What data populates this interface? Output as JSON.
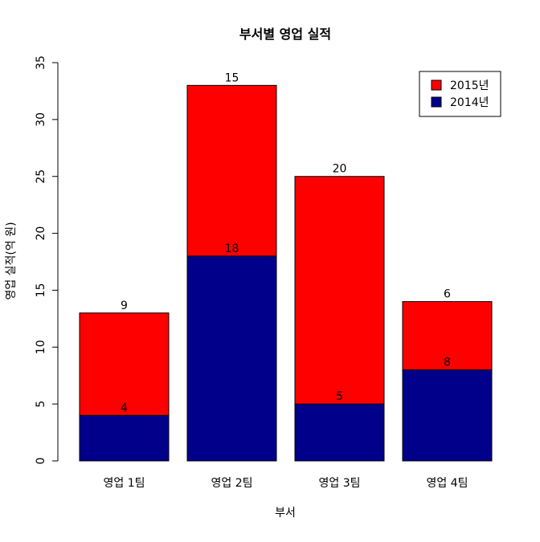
{
  "chart_data": {
    "type": "bar",
    "stacked": true,
    "title": "부서별 영업 실적",
    "xlabel": "부서",
    "ylabel": "영업 실적(억 원)",
    "categories": [
      "영업 1팀",
      "영업 2팀",
      "영업 3팀",
      "영업 4팀"
    ],
    "series": [
      {
        "name": "2014년",
        "values": [
          4,
          18,
          5,
          8
        ],
        "color": "#00008B"
      },
      {
        "name": "2015년",
        "values": [
          9,
          15,
          20,
          6
        ],
        "color": "#FF0000"
      }
    ],
    "ylim": [
      0,
      35
    ],
    "yticks": [
      0,
      5,
      10,
      15,
      20,
      25,
      30,
      35
    ],
    "legend_order": [
      "2015년",
      "2014년"
    ],
    "legend_position": "top-right",
    "grid": false
  }
}
